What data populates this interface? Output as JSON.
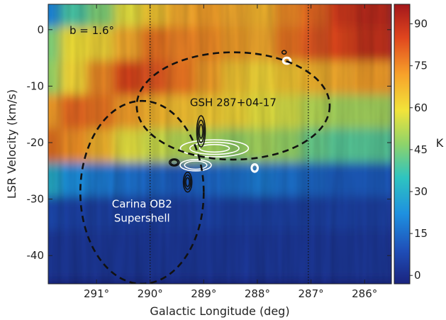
{
  "chart_data": {
    "type": "heatmap",
    "xlabel": "Galactic Longitude (deg)",
    "ylabel": "LSR Velocity (km/s)",
    "xlim": [
      291.9,
      285.5
    ],
    "ylim": [
      -45,
      4.5
    ],
    "x_reversed": true,
    "x_ticks": [
      291,
      290,
      289,
      288,
      287,
      286
    ],
    "x_tick_labels": [
      "291°",
      "290°",
      "289°",
      "288°",
      "287°",
      "286°"
    ],
    "y_ticks": [
      0,
      -10,
      -20,
      -30,
      -40
    ],
    "y_tick_labels": [
      "0",
      "-10",
      "-20",
      "-30",
      "-40"
    ],
    "colorbar": {
      "label": "K",
      "range": [
        -3,
        97
      ],
      "ticks": [
        0,
        15,
        30,
        45,
        60,
        75,
        90
      ],
      "tick_labels": [
        "0",
        "15",
        "30",
        "45",
        "60",
        "75",
        "90"
      ],
      "colormap": [
        "#1a237e",
        "#1f4fb8",
        "#1e90e0",
        "#2ec4c0",
        "#8ed36a",
        "#f2e43a",
        "#f7a12a",
        "#e0461e",
        "#a3171b"
      ]
    },
    "vertical_reference_lines": [
      290.0,
      287.05
    ],
    "panel_label": "b = 1.6°",
    "regions": [
      {
        "name": "GSH 287+04-17",
        "center": [
          288.45,
          -13.5
        ],
        "half_width_deg": 1.8,
        "half_height_kms": 9.5
      },
      {
        "name": "Carina OB2 Supershell",
        "label_lines": [
          "Carina OB2",
          "Supershell"
        ],
        "center": [
          290.15,
          -28.8
        ],
        "half_width_deg": 1.15,
        "half_height_kms": 16.2
      }
    ],
    "emission_field_K": {
      "x": [
        291.8,
        291.3,
        290.8,
        290.3,
        289.8,
        289.3,
        288.8,
        288.3,
        287.8,
        287.3,
        286.8,
        286.3,
        285.8
      ],
      "v": [
        2,
        -4,
        -10,
        -16,
        -22,
        -28,
        -34,
        -40
      ],
      "values": [
        [
          20,
          38,
          45,
          58,
          65,
          70,
          72,
          70,
          68,
          75,
          80,
          88,
          92
        ],
        [
          45,
          60,
          62,
          70,
          78,
          76,
          75,
          72,
          70,
          78,
          82,
          85,
          90
        ],
        [
          48,
          62,
          75,
          85,
          82,
          78,
          72,
          65,
          62,
          65,
          68,
          70,
          72
        ],
        [
          72,
          80,
          78,
          72,
          68,
          66,
          64,
          62,
          58,
          56,
          52,
          50,
          50
        ],
        [
          78,
          74,
          68,
          58,
          55,
          52,
          50,
          48,
          50,
          48,
          42,
          40,
          40
        ],
        [
          30,
          22,
          18,
          16,
          14,
          12,
          14,
          16,
          18,
          16,
          14,
          12,
          12
        ],
        [
          8,
          6,
          5,
          5,
          4,
          4,
          6,
          5,
          5,
          5,
          5,
          6,
          5
        ],
        [
          3,
          3,
          3,
          3,
          3,
          3,
          3,
          3,
          3,
          3,
          3,
          3,
          3
        ]
      ]
    }
  }
}
